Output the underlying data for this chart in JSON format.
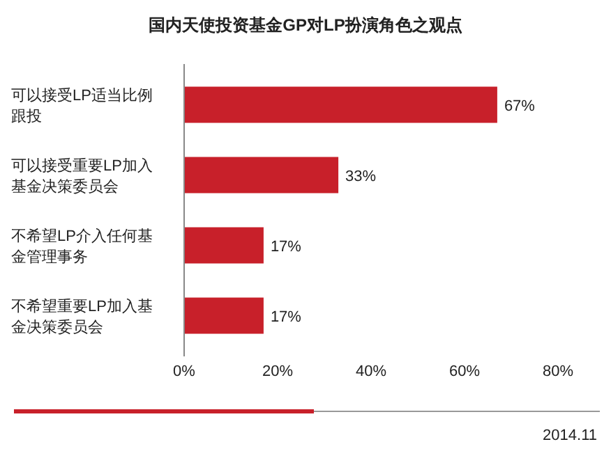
{
  "chart_data": {
    "type": "bar",
    "orientation": "horizontal",
    "title": "国内天使投资基金GP对LP扮演角色之观点",
    "categories": [
      "可以接受LP适当比例跟投",
      "可以接受重要LP加入基金决策委员会",
      "不希望LP介入任何基金管理事务",
      "不希望重要LP加入基金决策委员会"
    ],
    "values": [
      67,
      33,
      17,
      17
    ],
    "value_labels": [
      "67%",
      "33%",
      "17%",
      "17%"
    ],
    "color": "#c8202a",
    "xlim": [
      0,
      80
    ],
    "xticks": [
      {
        "value": 0,
        "label": "0%"
      },
      {
        "value": 20,
        "label": "20%"
      },
      {
        "value": 40,
        "label": "40%"
      },
      {
        "value": 60,
        "label": "60%"
      },
      {
        "value": 80,
        "label": "80%"
      }
    ],
    "grid": false,
    "annotations": [
      "2014.11"
    ]
  }
}
